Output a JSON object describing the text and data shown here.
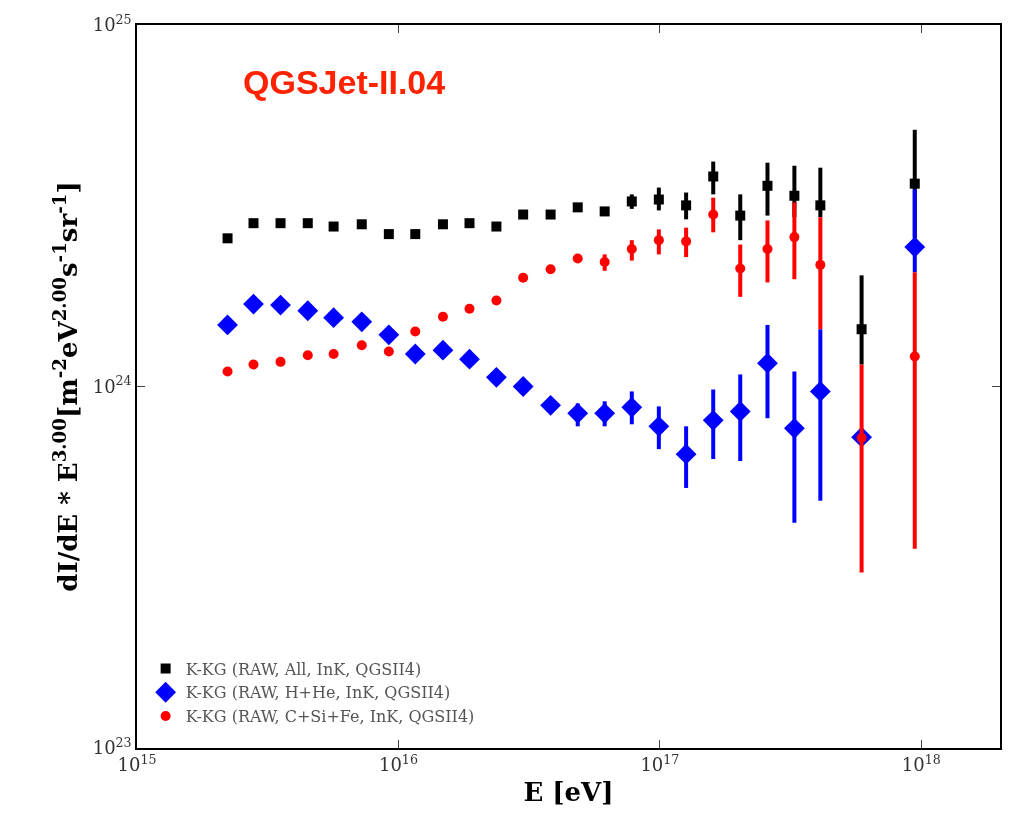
{
  "chart_data": {
    "type": "scatter",
    "title": "QGSJet-II.04",
    "xlabel": "E [eV]",
    "ylabel": "dI/dE * E$^{3.00}$[m$^{-2}$eV$^{2.00}$s$^{-1}$sr$^{-1}$]",
    "log": "xy",
    "grid": false,
    "legend": "bottom left",
    "xlim": [
      1000000000000000.0,
      2e+18
    ],
    "ylim": [
      1e+23,
      1e+25
    ],
    "xticks": [
      {
        "value": 1000000000000000.0,
        "label": "10$^{15}$"
      },
      {
        "value": 1e+16,
        "label": "10$^{16}$"
      },
      {
        "value": 1e+17,
        "label": "10$^{17}$"
      },
      {
        "value": 1e+18,
        "label": "10$^{18}$"
      }
    ],
    "yticks": [
      {
        "value": 1e+23,
        "label": "10$^{23}$"
      },
      {
        "value": 1e+24,
        "label": "10$^{24}$"
      },
      {
        "value": 1e+25,
        "label": "10$^{25}$"
      }
    ],
    "x": [
      2220000000000000.0,
      2790000000000000.0,
      3540000000000000.0,
      4500000000000000.0,
      5650000000000000.0,
      7240000000000000.0,
      9190000000000000.0,
      1.16e+16,
      1.48e+16,
      1.87e+16,
      2.37e+16,
      3e+16,
      3.82e+16,
      4.85e+16,
      6.15e+16,
      7.81e+16,
      9.91e+16,
      1.26e+17,
      1.6e+17,
      2.03e+17,
      2.58e+17,
      3.27e+17,
      4.11e+17,
      5.91e+17,
      9.44e+17
    ],
    "series": [
      {
        "name": "K-KG (RAW, All, InK, QGSII4)",
        "color": "#000000",
        "marker": "square",
        "values": [
          2.57e+24,
          2.83e+24,
          2.83e+24,
          2.83e+24,
          2.77e+24,
          2.81e+24,
          2.64e+24,
          2.64e+24,
          2.81e+24,
          2.83e+24,
          2.77e+24,
          2.99e+24,
          2.99e+24,
          3.13e+24,
          3.05e+24,
          3.25e+24,
          3.29e+24,
          3.17e+24,
          3.81e+24,
          2.97e+24,
          3.59e+24,
          3.37e+24,
          3.17e+24,
          1.44e+24,
          3.64e+24
        ],
        "errors": [
          null,
          null,
          null,
          null,
          null,
          null,
          null,
          null,
          null,
          null,
          null,
          null,
          null,
          null,
          null,
          [
            3.1e+24,
            3.4e+24
          ],
          [
            3.07e+24,
            3.55e+24
          ],
          [
            2.9e+24,
            3.44e+24
          ],
          [
            3.4e+24,
            4.19e+24
          ],
          [
            2.54e+24,
            3.4e+24
          ],
          [
            2.97e+24,
            4.16e+24
          ],
          [
            2.94e+24,
            4.08e+24
          ],
          [
            2.94e+24,
            4.03e+24
          ],
          [
            1.15e+24,
            2.03e+24
          ],
          [
            2.58e+24,
            5.13e+24
          ]
        ]
      },
      {
        "name": "K-KG (RAW, H+He, InK, QGSII4)",
        "color": "#0000ff",
        "marker": "diamond",
        "values": [
          1.48e+24,
          1.69e+24,
          1.68e+24,
          1.62e+24,
          1.55e+24,
          1.51e+24,
          1.39e+24,
          1.23e+24,
          1.26e+24,
          1.19e+24,
          1.06e+24,
          1e+24,
          8.87e+23,
          8.43e+23,
          8.43e+23,
          8.76e+23,
          7.76e+23,
          6.5e+23,
          8.06e+23,
          8.53e+23,
          1.16e+24,
          7.66e+23,
          9.69e+23,
          7.24e+23,
          2.43e+24
        ],
        "errors": [
          null,
          null,
          null,
          null,
          null,
          null,
          null,
          null,
          null,
          null,
          null,
          null,
          null,
          [
            7.76e+23,
            8.98e+23
          ],
          [
            7.76e+23,
            9.1e+23
          ],
          [
            7.86e+23,
            9.69e+23
          ],
          [
            6.71e+23,
            8.81e+23
          ],
          [
            5.24e+23,
            7.76e+23
          ],
          [
            6.3e+23,
            9.81e+23
          ],
          [
            6.22e+23,
            1.08e+24
          ],
          [
            8.17e+23,
            1.48e+24
          ],
          [
            4.2e+23,
            1.1e+24
          ],
          [
            4.83e+23,
            1.44e+24
          ],
          null,
          [
            2.07e+24,
            3.51e+24
          ]
        ]
      },
      {
        "name": "K-KG (RAW, C+Si+Fe, InK, QGSII4)",
        "color": "#ff0000",
        "marker": "circle",
        "values": [
          1.1e+24,
          1.15e+24,
          1.17e+24,
          1.22e+24,
          1.23e+24,
          1.3e+24,
          1.25e+24,
          1.42e+24,
          1.56e+24,
          1.64e+24,
          1.73e+24,
          2e+24,
          2.11e+24,
          2.26e+24,
          2.21e+24,
          2.4e+24,
          2.54e+24,
          2.52e+24,
          2.99e+24,
          2.12e+24,
          2.4e+24,
          2.59e+24,
          2.17e+24,
          7.2e+23,
          1.21e+24
        ],
        "errors": [
          null,
          null,
          null,
          null,
          null,
          null,
          null,
          null,
          null,
          null,
          null,
          null,
          null,
          null,
          [
            2.09e+24,
            2.32e+24
          ],
          [
            2.23e+24,
            2.54e+24
          ],
          [
            2.32e+24,
            2.72e+24
          ],
          [
            2.28e+24,
            2.75e+24
          ],
          [
            2.67e+24,
            3.33e+24
          ],
          [
            1.77e+24,
            2.47e+24
          ],
          [
            1.94e+24,
            2.88e+24
          ],
          [
            1.98e+24,
            3.23e+24
          ],
          [
            1.44e+24,
            2.94e+24
          ],
          [
            3.06e+23,
            1.15e+24
          ],
          [
            3.56e+23,
            2.07e+24
          ]
        ]
      }
    ]
  }
}
